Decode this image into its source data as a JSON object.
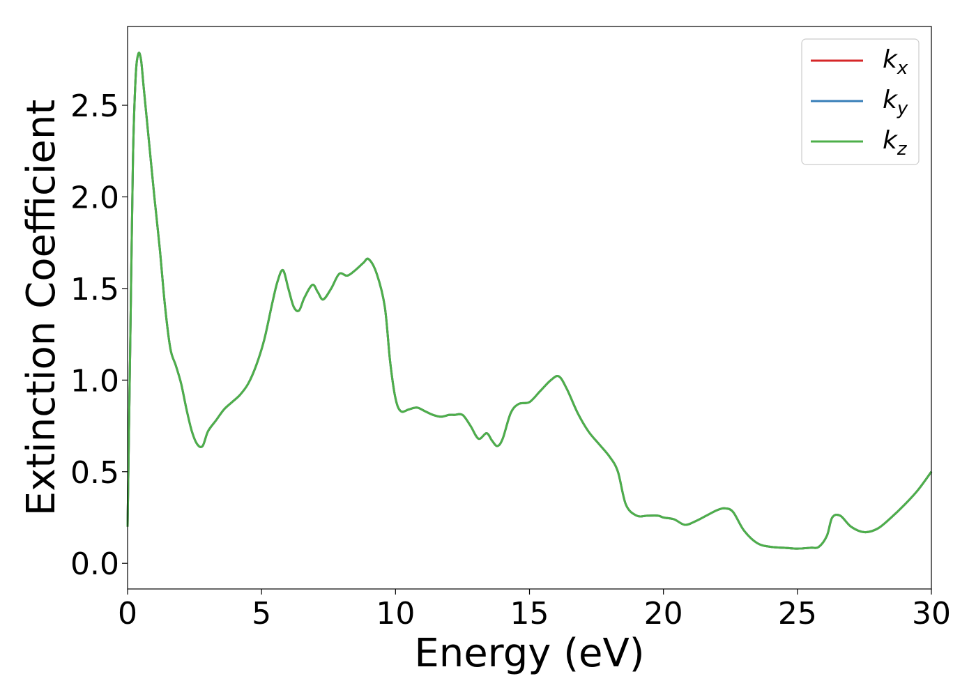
{
  "chart_data": {
    "type": "line",
    "title": "",
    "xlabel": "Energy (eV)",
    "ylabel": "Extinction Coefficient",
    "xlim": [
      0,
      30
    ],
    "ylim": [
      -0.14,
      2.93
    ],
    "xticks": [
      0,
      5,
      10,
      15,
      20,
      25,
      30
    ],
    "xtick_labels": [
      "0",
      "5",
      "10",
      "15",
      "20",
      "25",
      "30"
    ],
    "yticks": [
      0.0,
      0.5,
      1.0,
      1.5,
      2.0,
      2.5
    ],
    "ytick_labels": [
      "0.0",
      "0.5",
      "1.0",
      "1.5",
      "2.0",
      "2.5"
    ],
    "grid": false,
    "legend_position": "top-right",
    "x": [
      0,
      0.1,
      0.2,
      0.3,
      0.4,
      0.5,
      0.6,
      0.8,
      1.0,
      1.2,
      1.4,
      1.6,
      1.8,
      2.0,
      2.2,
      2.4,
      2.6,
      2.8,
      3.0,
      3.3,
      3.6,
      3.9,
      4.2,
      4.5,
      4.8,
      5.1,
      5.4,
      5.6,
      5.8,
      6.0,
      6.2,
      6.4,
      6.6,
      6.9,
      7.1,
      7.3,
      7.6,
      7.9,
      8.2,
      8.5,
      8.8,
      9.0,
      9.3,
      9.6,
      9.8,
      10.0,
      10.2,
      10.5,
      10.8,
      11.1,
      11.4,
      11.7,
      12.0,
      12.2,
      12.5,
      12.8,
      13.1,
      13.4,
      13.6,
      13.8,
      14.0,
      14.3,
      14.6,
      15.0,
      15.4,
      15.8,
      16.1,
      16.4,
      16.8,
      17.2,
      17.6,
      18.0,
      18.3,
      18.6,
      19.0,
      19.4,
      19.8,
      20.0,
      20.4,
      20.8,
      21.2,
      21.6,
      22.0,
      22.3,
      22.6,
      23.0,
      23.5,
      24.0,
      24.5,
      25.0,
      25.5,
      25.8,
      26.1,
      26.3,
      26.6,
      27.0,
      27.5,
      28.0,
      28.5,
      29.0,
      29.5,
      30.0
    ],
    "series": [
      {
        "name": "k_x",
        "color": "#d62728",
        "values": [
          0.2,
          1.2,
          2.2,
          2.65,
          2.78,
          2.75,
          2.6,
          2.3,
          2.0,
          1.72,
          1.4,
          1.17,
          1.08,
          0.98,
          0.84,
          0.72,
          0.65,
          0.64,
          0.72,
          0.78,
          0.84,
          0.88,
          0.92,
          0.98,
          1.08,
          1.22,
          1.42,
          1.54,
          1.6,
          1.5,
          1.4,
          1.38,
          1.45,
          1.52,
          1.48,
          1.44,
          1.5,
          1.58,
          1.57,
          1.6,
          1.64,
          1.66,
          1.58,
          1.4,
          1.1,
          0.9,
          0.83,
          0.84,
          0.85,
          0.83,
          0.81,
          0.8,
          0.81,
          0.81,
          0.81,
          0.75,
          0.68,
          0.71,
          0.67,
          0.64,
          0.68,
          0.82,
          0.87,
          0.88,
          0.94,
          1.0,
          1.02,
          0.95,
          0.82,
          0.72,
          0.65,
          0.58,
          0.5,
          0.32,
          0.26,
          0.26,
          0.26,
          0.25,
          0.24,
          0.21,
          0.23,
          0.26,
          0.29,
          0.3,
          0.28,
          0.18,
          0.11,
          0.09,
          0.085,
          0.08,
          0.085,
          0.09,
          0.15,
          0.25,
          0.26,
          0.2,
          0.17,
          0.19,
          0.25,
          0.32,
          0.4,
          0.5
        ]
      },
      {
        "name": "k_y",
        "color": "#377eb8",
        "values": [
          0.2,
          1.2,
          2.2,
          2.65,
          2.78,
          2.75,
          2.6,
          2.3,
          2.0,
          1.72,
          1.4,
          1.17,
          1.08,
          0.98,
          0.84,
          0.72,
          0.65,
          0.64,
          0.72,
          0.78,
          0.84,
          0.88,
          0.92,
          0.98,
          1.08,
          1.22,
          1.42,
          1.54,
          1.6,
          1.5,
          1.4,
          1.38,
          1.45,
          1.52,
          1.48,
          1.44,
          1.5,
          1.58,
          1.57,
          1.6,
          1.64,
          1.66,
          1.58,
          1.4,
          1.1,
          0.9,
          0.83,
          0.84,
          0.85,
          0.83,
          0.81,
          0.8,
          0.81,
          0.81,
          0.81,
          0.75,
          0.68,
          0.71,
          0.67,
          0.64,
          0.68,
          0.82,
          0.87,
          0.88,
          0.94,
          1.0,
          1.02,
          0.95,
          0.82,
          0.72,
          0.65,
          0.58,
          0.5,
          0.32,
          0.26,
          0.26,
          0.26,
          0.25,
          0.24,
          0.21,
          0.23,
          0.26,
          0.29,
          0.3,
          0.28,
          0.18,
          0.11,
          0.09,
          0.085,
          0.08,
          0.085,
          0.09,
          0.15,
          0.25,
          0.26,
          0.2,
          0.17,
          0.19,
          0.25,
          0.32,
          0.4,
          0.5
        ]
      },
      {
        "name": "k_z",
        "color": "#4daf4a",
        "values": [
          0.2,
          1.2,
          2.2,
          2.65,
          2.78,
          2.75,
          2.6,
          2.3,
          2.0,
          1.72,
          1.4,
          1.17,
          1.08,
          0.98,
          0.84,
          0.72,
          0.65,
          0.64,
          0.72,
          0.78,
          0.84,
          0.88,
          0.92,
          0.98,
          1.08,
          1.22,
          1.42,
          1.54,
          1.6,
          1.5,
          1.4,
          1.38,
          1.45,
          1.52,
          1.48,
          1.44,
          1.5,
          1.58,
          1.57,
          1.6,
          1.64,
          1.66,
          1.58,
          1.4,
          1.1,
          0.9,
          0.83,
          0.84,
          0.85,
          0.83,
          0.81,
          0.8,
          0.81,
          0.81,
          0.81,
          0.75,
          0.68,
          0.71,
          0.67,
          0.64,
          0.68,
          0.82,
          0.87,
          0.88,
          0.94,
          1.0,
          1.02,
          0.95,
          0.82,
          0.72,
          0.65,
          0.58,
          0.5,
          0.32,
          0.26,
          0.26,
          0.26,
          0.25,
          0.24,
          0.21,
          0.23,
          0.26,
          0.29,
          0.3,
          0.28,
          0.18,
          0.11,
          0.09,
          0.085,
          0.08,
          0.085,
          0.09,
          0.15,
          0.25,
          0.26,
          0.2,
          0.17,
          0.19,
          0.25,
          0.32,
          0.4,
          0.5
        ]
      }
    ],
    "legend": [
      {
        "base": "k",
        "sub": "x",
        "color": "#d62728"
      },
      {
        "base": "k",
        "sub": "y",
        "color": "#377eb8"
      },
      {
        "base": "k",
        "sub": "z",
        "color": "#4daf4a"
      }
    ]
  }
}
